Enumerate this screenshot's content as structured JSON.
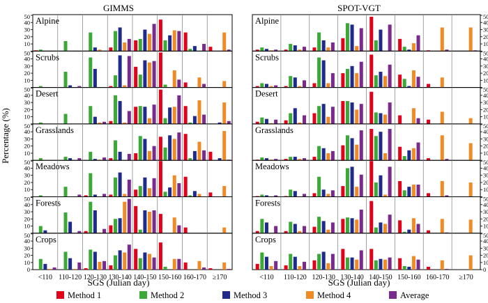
{
  "figure": {
    "ylabel": "Percentage (%)",
    "legend": [
      {
        "name": "Method 1",
        "color": "#e3001b"
      },
      {
        "name": "Method 2",
        "color": "#3aa935"
      },
      {
        "name": "Method 3",
        "color": "#1f2a8c"
      },
      {
        "name": "Method 4",
        "color": "#f08a24"
      },
      {
        "name": "Average",
        "color": "#7a2a8c"
      }
    ]
  },
  "chart_data": [
    {
      "type": "bar",
      "title": "GIMMS",
      "xlabel": "SGS (Julian day)",
      "ylim": [
        0,
        50
      ],
      "yticks": [
        0,
        10,
        20,
        30,
        40,
        50
      ],
      "categories": [
        "<110",
        "110-120",
        "120-130",
        "130-140",
        "140-150",
        "150-160",
        "160-170",
        "≥170"
      ],
      "series_names": [
        "Method 1",
        "Method 2",
        "Method 3",
        "Method 4",
        "Average"
      ],
      "panels": [
        {
          "name": "Alpine",
          "values": [
            [
              1,
              2,
              0,
              0,
              0
            ],
            [
              0,
              14,
              0,
              0,
              0
            ],
            [
              0,
              26,
              5,
              2,
              0
            ],
            [
              5,
              28,
              33,
              12,
              17
            ],
            [
              15,
              17,
              30,
              24,
              38
            ],
            [
              44,
              15,
              22,
              29,
              28
            ],
            [
              26,
              3,
              7,
              0,
              10
            ],
            [
              6,
              0,
              0,
              26,
              2
            ]
          ]
        },
        {
          "name": "Scrubs",
          "values": [
            [
              0,
              2,
              0,
              0,
              0
            ],
            [
              0,
              22,
              3,
              0,
              2
            ],
            [
              0,
              42,
              26,
              0,
              0
            ],
            [
              2,
              17,
              45,
              3,
              44
            ],
            [
              29,
              18,
              38,
              35,
              37
            ],
            [
              49,
              4,
              0,
              24,
              11
            ],
            [
              7,
              0,
              0,
              14,
              5
            ],
            [
              0,
              0,
              0,
              9,
              0
            ]
          ]
        },
        {
          "name": "Desert",
          "values": [
            [
              0,
              2,
              0,
              0,
              0
            ],
            [
              0,
              14,
              0,
              0,
              0
            ],
            [
              0,
              25,
              10,
              2,
              3
            ],
            [
              4,
              40,
              32,
              2,
              18
            ],
            [
              24,
              25,
              24,
              8,
              27
            ],
            [
              48,
              8,
              23,
              24,
              40
            ],
            [
              25,
              2,
              11,
              33,
              13
            ],
            [
              0,
              0,
              2,
              30,
              4
            ]
          ]
        },
        {
          "name": "Grasslands",
          "values": [
            [
              0,
              3,
              0,
              0,
              0
            ],
            [
              0,
              5,
              3,
              0,
              3
            ],
            [
              0,
              12,
              2,
              1,
              4
            ],
            [
              3,
              28,
              12,
              0,
              9
            ],
            [
              10,
              34,
              30,
              13,
              20
            ],
            [
              33,
              18,
              35,
              30,
              39
            ],
            [
              37,
              3,
              13,
              26,
              14
            ],
            [
              12,
              0,
              3,
              41,
              1
            ]
          ]
        },
        {
          "name": "Meadows",
          "values": [
            [
              0,
              2,
              0,
              0,
              0
            ],
            [
              0,
              14,
              0,
              0,
              3
            ],
            [
              2,
              33,
              3,
              0,
              4
            ],
            [
              3,
              27,
              34,
              4,
              24
            ],
            [
              10,
              15,
              27,
              12,
              26
            ],
            [
              50,
              7,
              13,
              30,
              19
            ],
            [
              28,
              2,
              8,
              4,
              0
            ],
            [
              6,
              0,
              0,
              15,
              0
            ]
          ]
        },
        {
          "name": "Forests",
          "values": [
            [
              0,
              10,
              4,
              0,
              0
            ],
            [
              0,
              29,
              16,
              0,
              3
            ],
            [
              3,
              44,
              32,
              1,
              6
            ],
            [
              11,
              20,
              21,
              44,
              48
            ],
            [
              38,
              5,
              32,
              30,
              32
            ],
            [
              27,
              0,
              0,
              22,
              11
            ],
            [
              8,
              0,
              0,
              0,
              0
            ],
            [
              0,
              0,
              0,
              8,
              0
            ]
          ]
        },
        {
          "name": "Crops",
          "values": [
            [
              0,
              15,
              8,
              1,
              3
            ],
            [
              0,
              25,
              16,
              1,
              10
            ],
            [
              2,
              28,
              25,
              11,
              12
            ],
            [
              6,
              20,
              27,
              24,
              35
            ],
            [
              29,
              16,
              24,
              22,
              17
            ],
            [
              38,
              4,
              0,
              15,
              15
            ],
            [
              10,
              0,
              0,
              12,
              3
            ],
            [
              2,
              0,
              0,
              10,
              1
            ]
          ]
        }
      ]
    },
    {
      "type": "bar",
      "title": "SPOT-VGT",
      "xlabel": "SGS (Julian day)",
      "ylim": [
        0,
        50
      ],
      "yticks": [
        0,
        10,
        20,
        30,
        40,
        50
      ],
      "categories": [
        "<110",
        "110-120",
        "120-130",
        "130-140",
        "140-150",
        "150-160",
        "160-170",
        "≥170"
      ],
      "series_names": [
        "Method 1",
        "Method 2",
        "Method 3",
        "Method 4",
        "Average"
      ],
      "panels": [
        {
          "name": "Alpine",
          "values": [
            [
              2,
              5,
              3,
              1,
              2
            ],
            [
              2,
              10,
              8,
              2,
              6
            ],
            [
              5,
              26,
              15,
              5,
              12
            ],
            [
              18,
              39,
              37,
              7,
              32
            ],
            [
              48,
              15,
              30,
              0,
              37
            ],
            [
              17,
              6,
              2,
              11,
              22
            ],
            [
              1,
              0,
              0,
              33,
              2
            ],
            [
              0,
              0,
              0,
              33,
              1
            ]
          ]
        },
        {
          "name": "Scrubs",
          "values": [
            [
              2,
              6,
              5,
              2,
              3
            ],
            [
              2,
              16,
              14,
              2,
              10
            ],
            [
              6,
              42,
              38,
              6,
              20
            ],
            [
              20,
              26,
              30,
              20,
              36
            ],
            [
              46,
              17,
              22,
              16,
              32
            ],
            [
              18,
              12,
              2,
              24,
              15
            ],
            [
              5,
              0,
              0,
              14,
              0
            ],
            [
              0,
              0,
              0,
              0,
              0
            ]
          ]
        },
        {
          "name": "Desert",
          "values": [
            [
              3,
              9,
              7,
              1,
              6
            ],
            [
              5,
              15,
              22,
              2,
              12
            ],
            [
              15,
              25,
              28,
              10,
              24
            ],
            [
              32,
              32,
              30,
              20,
              28
            ],
            [
              45,
              16,
              15,
              13,
              30
            ],
            [
              12,
              0,
              0,
              22,
              8
            ],
            [
              6,
              0,
              0,
              17,
              0
            ],
            [
              0,
              0,
              0,
              8,
              0
            ]
          ]
        },
        {
          "name": "Grasslands",
          "values": [
            [
              1,
              4,
              3,
              1,
              2
            ],
            [
              2,
              5,
              5,
              2,
              3
            ],
            [
              5,
              20,
              17,
              10,
              13
            ],
            [
              21,
              35,
              31,
              22,
              42
            ],
            [
              44,
              34,
              40,
              10,
              44
            ],
            [
              19,
              6,
              14,
              17,
              25
            ],
            [
              3,
              0,
              0,
              35,
              2
            ],
            [
              0,
              0,
              0,
              24,
              0
            ]
          ]
        },
        {
          "name": "Meadows",
          "values": [
            [
              1,
              3,
              2,
              0,
              2
            ],
            [
              1,
              10,
              8,
              0,
              4
            ],
            [
              5,
              28,
              10,
              4,
              9
            ],
            [
              15,
              40,
              42,
              14,
              31
            ],
            [
              50,
              20,
              30,
              3,
              42
            ],
            [
              22,
              9,
              14,
              17,
              17
            ],
            [
              5,
              0,
              0,
              22,
              2
            ],
            [
              0,
              0,
              0,
              20,
              0
            ]
          ]
        },
        {
          "name": "Forests",
          "values": [
            [
              3,
              20,
              15,
              0,
              10
            ],
            [
              3,
              16,
              13,
              3,
              10
            ],
            [
              9,
              23,
              17,
              5,
              15
            ],
            [
              20,
              22,
              21,
              19,
              33
            ],
            [
              45,
              8,
              15,
              13,
              26
            ],
            [
              18,
              2,
              5,
              21,
              13
            ],
            [
              4,
              0,
              0,
              20,
              1
            ],
            [
              0,
              0,
              0,
              19,
              0
            ]
          ]
        },
        {
          "name": "Crops",
          "values": [
            [
              8,
              24,
              18,
              5,
              12
            ],
            [
              6,
              22,
              18,
              5,
              11
            ],
            [
              13,
              22,
              25,
              9,
              22
            ],
            [
              29,
              17,
              17,
              14,
              27
            ],
            [
              29,
              13,
              15,
              14,
              17
            ],
            [
              16,
              5,
              4,
              19,
              14
            ],
            [
              4,
              0,
              0,
              13,
              1
            ],
            [
              0,
              0,
              0,
              20,
              0
            ]
          ]
        }
      ]
    }
  ]
}
